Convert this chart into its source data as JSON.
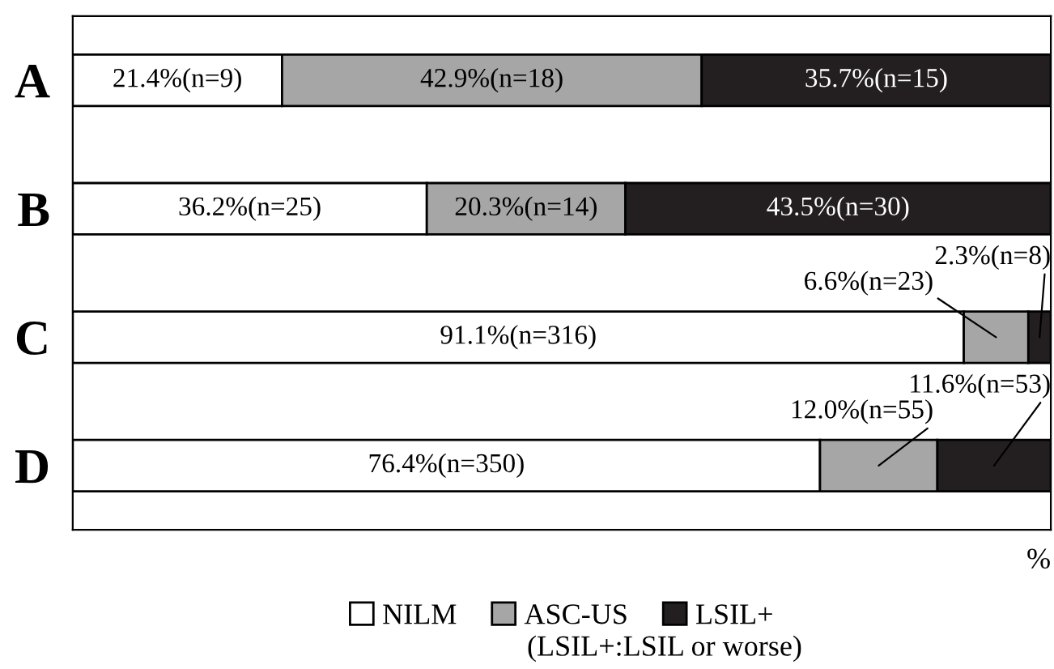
{
  "chart_data": {
    "type": "bar",
    "orientation": "horizontal",
    "stacked": true,
    "xlabel": "%",
    "categories": [
      "A",
      "B",
      "C",
      "D"
    ],
    "series": [
      {
        "name": "NILM",
        "color": "#ffffff",
        "values": [
          21.4,
          36.2,
          91.1,
          76.4
        ],
        "value_labels": [
          "21.4%(n=9)",
          "36.2%(n=25)",
          "91.1%(n=316)",
          "76.4%(n=350)"
        ]
      },
      {
        "name": "ASC-US",
        "color": "#a6a6a6",
        "values": [
          42.9,
          20.3,
          6.6,
          12.0
        ],
        "value_labels": [
          "42.9%(n=18)",
          "20.3%(n=14)",
          "6.6%(n=23)",
          "12.0%(n=55)"
        ]
      },
      {
        "name": "LSIL+",
        "color": "#231f20",
        "values": [
          35.7,
          43.5,
          2.3,
          11.6
        ],
        "value_labels": [
          "35.7%(n=15)",
          "43.5%(n=30)",
          "2.3%(n=8)",
          "11.6%(n=53)"
        ]
      }
    ],
    "legend": "bottom",
    "grid": false,
    "annotations": [
      "(LSIL+:LSIL or worse)"
    ]
  }
}
